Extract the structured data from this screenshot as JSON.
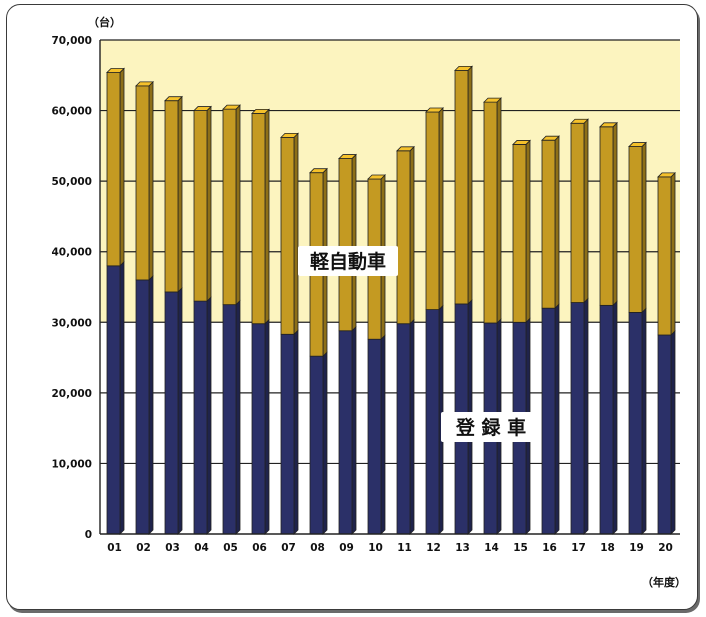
{
  "chart_data": {
    "type": "bar",
    "stacked": true,
    "y_unit": "（台）",
    "x_unit": "（年度）",
    "ylim": [
      0,
      70000
    ],
    "yticks": [
      "0",
      "10,000",
      "20,000",
      "30,000",
      "40,000",
      "50,000",
      "60,000",
      "70,000"
    ],
    "categories": [
      "01",
      "02",
      "03",
      "04",
      "05",
      "06",
      "07",
      "08",
      "09",
      "10",
      "11",
      "12",
      "13",
      "14",
      "15",
      "16",
      "17",
      "18",
      "19",
      "20"
    ],
    "series": [
      {
        "name": "登 録 車",
        "values": [
          38000,
          36000,
          34300,
          33000,
          32500,
          29800,
          28300,
          25200,
          28800,
          27600,
          29800,
          31800,
          32600,
          29900,
          30000,
          32000,
          32800,
          32400,
          31400,
          28200
        ]
      },
      {
        "name": "軽自動車",
        "values": [
          27400,
          27500,
          27100,
          27000,
          27700,
          29800,
          27900,
          26000,
          24400,
          22700,
          24500,
          28000,
          33100,
          31300,
          25200,
          23800,
          25400,
          25300,
          23500,
          22400
        ]
      }
    ],
    "colors": {
      "registered": "#2b3068",
      "kei": "#c49a22",
      "plot_bg": "#fcf4bf"
    },
    "grid": true
  }
}
